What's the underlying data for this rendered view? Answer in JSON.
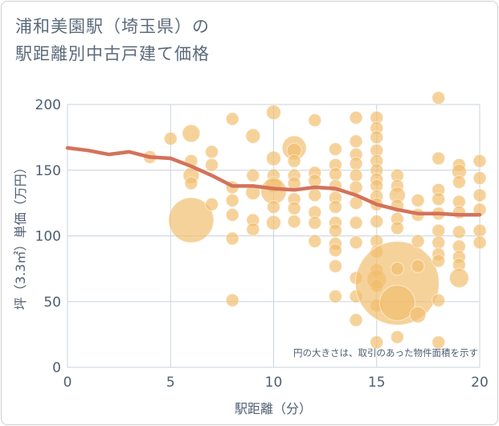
{
  "title_lines": [
    "浦和美園駅（埼玉県）の",
    "駅距離別中古戸建て価格"
  ],
  "note": "円の大きさは、取引のあった物件面積を示す",
  "colors": {
    "bubble": "#f2bc6b",
    "trend": "#d4725a",
    "grid": "#c9d3de",
    "text": "#4f5f72"
  },
  "chart_data": {
    "type": "scatter",
    "title": "浦和美園駅（埼玉県）の駅距離別中古戸建て価格",
    "xlabel": "駅距離（分）",
    "ylabel": "坪（3.3㎡）単価（万円）",
    "xlim": [
      0,
      20
    ],
    "ylim": [
      0,
      200
    ],
    "xticks": [
      "0",
      "5",
      "10",
      "15",
      "20"
    ],
    "yticks": [
      "0",
      "50",
      "100",
      "150",
      "200"
    ],
    "grid": true,
    "bubbles": [
      {
        "x": 4,
        "y": 160,
        "s": 8
      },
      {
        "x": 5,
        "y": 174,
        "s": 8
      },
      {
        "x": 6,
        "y": 178,
        "s": 11
      },
      {
        "x": 6,
        "y": 157,
        "s": 8
      },
      {
        "x": 6,
        "y": 146,
        "s": 10
      },
      {
        "x": 6,
        "y": 140,
        "s": 8
      },
      {
        "x": 6,
        "y": 112,
        "s": 28
      },
      {
        "x": 7,
        "y": 164,
        "s": 8
      },
      {
        "x": 7,
        "y": 154,
        "s": 8
      },
      {
        "x": 7,
        "y": 124,
        "s": 8
      },
      {
        "x": 8,
        "y": 189,
        "s": 8
      },
      {
        "x": 8,
        "y": 137,
        "s": 8
      },
      {
        "x": 8,
        "y": 127,
        "s": 8
      },
      {
        "x": 8,
        "y": 116,
        "s": 8
      },
      {
        "x": 8,
        "y": 98,
        "s": 8
      },
      {
        "x": 8,
        "y": 51,
        "s": 8
      },
      {
        "x": 9,
        "y": 176,
        "s": 9
      },
      {
        "x": 9,
        "y": 146,
        "s": 8
      },
      {
        "x": 9,
        "y": 133,
        "s": 9
      },
      {
        "x": 9,
        "y": 112,
        "s": 8
      },
      {
        "x": 9,
        "y": 105,
        "s": 8
      },
      {
        "x": 10,
        "y": 194,
        "s": 9
      },
      {
        "x": 10,
        "y": 159,
        "s": 9
      },
      {
        "x": 10,
        "y": 146,
        "s": 8
      },
      {
        "x": 10,
        "y": 139,
        "s": 10
      },
      {
        "x": 10,
        "y": 134,
        "s": 16
      },
      {
        "x": 10,
        "y": 122,
        "s": 8
      },
      {
        "x": 10,
        "y": 110,
        "s": 9
      },
      {
        "x": 11,
        "y": 167,
        "s": 15
      },
      {
        "x": 11,
        "y": 165,
        "s": 9
      },
      {
        "x": 11,
        "y": 157,
        "s": 8
      },
      {
        "x": 11,
        "y": 146,
        "s": 8
      },
      {
        "x": 11,
        "y": 140,
        "s": 8
      },
      {
        "x": 11,
        "y": 128,
        "s": 8
      },
      {
        "x": 11,
        "y": 121,
        "s": 8
      },
      {
        "x": 11,
        "y": 111,
        "s": 8
      },
      {
        "x": 12,
        "y": 188,
        "s": 8
      },
      {
        "x": 12,
        "y": 148,
        "s": 8
      },
      {
        "x": 12,
        "y": 142,
        "s": 8
      },
      {
        "x": 12,
        "y": 131,
        "s": 8
      },
      {
        "x": 12,
        "y": 118,
        "s": 8
      },
      {
        "x": 12,
        "y": 110,
        "s": 8
      },
      {
        "x": 12,
        "y": 96,
        "s": 8
      },
      {
        "x": 13,
        "y": 166,
        "s": 8
      },
      {
        "x": 13,
        "y": 154,
        "s": 8
      },
      {
        "x": 13,
        "y": 147,
        "s": 8
      },
      {
        "x": 13,
        "y": 138,
        "s": 8
      },
      {
        "x": 13,
        "y": 129,
        "s": 8
      },
      {
        "x": 13,
        "y": 122,
        "s": 8
      },
      {
        "x": 13,
        "y": 110,
        "s": 8
      },
      {
        "x": 13,
        "y": 104,
        "s": 8
      },
      {
        "x": 13,
        "y": 94,
        "s": 8
      },
      {
        "x": 13,
        "y": 89,
        "s": 8
      },
      {
        "x": 13,
        "y": 77,
        "s": 8
      },
      {
        "x": 13,
        "y": 54,
        "s": 8
      },
      {
        "x": 14,
        "y": 190,
        "s": 8
      },
      {
        "x": 14,
        "y": 172,
        "s": 8
      },
      {
        "x": 14,
        "y": 162,
        "s": 8
      },
      {
        "x": 14,
        "y": 155,
        "s": 8
      },
      {
        "x": 14,
        "y": 146,
        "s": 8
      },
      {
        "x": 14,
        "y": 137,
        "s": 8
      },
      {
        "x": 14,
        "y": 125,
        "s": 8
      },
      {
        "x": 14,
        "y": 110,
        "s": 8
      },
      {
        "x": 14,
        "y": 95,
        "s": 8
      },
      {
        "x": 14,
        "y": 68,
        "s": 8
      },
      {
        "x": 14,
        "y": 54,
        "s": 8
      },
      {
        "x": 14,
        "y": 36,
        "s": 8
      },
      {
        "x": 15,
        "y": 190,
        "s": 8
      },
      {
        "x": 15,
        "y": 182,
        "s": 8
      },
      {
        "x": 15,
        "y": 175,
        "s": 8
      },
      {
        "x": 15,
        "y": 165,
        "s": 8
      },
      {
        "x": 15,
        "y": 157,
        "s": 8
      },
      {
        "x": 15,
        "y": 150,
        "s": 8
      },
      {
        "x": 15,
        "y": 143,
        "s": 8
      },
      {
        "x": 15,
        "y": 138,
        "s": 8
      },
      {
        "x": 15,
        "y": 130,
        "s": 8
      },
      {
        "x": 15,
        "y": 124,
        "s": 8
      },
      {
        "x": 15,
        "y": 111,
        "s": 8
      },
      {
        "x": 15,
        "y": 96,
        "s": 8
      },
      {
        "x": 15,
        "y": 88,
        "s": 8
      },
      {
        "x": 15,
        "y": 74,
        "s": 8
      },
      {
        "x": 15,
        "y": 67,
        "s": 12
      },
      {
        "x": 15,
        "y": 62,
        "s": 8
      },
      {
        "x": 15,
        "y": 47,
        "s": 8
      },
      {
        "x": 15,
        "y": 19,
        "s": 8
      },
      {
        "x": 16,
        "y": 64,
        "s": 52
      },
      {
        "x": 16,
        "y": 146,
        "s": 8
      },
      {
        "x": 16,
        "y": 138,
        "s": 8
      },
      {
        "x": 16,
        "y": 131,
        "s": 10
      },
      {
        "x": 16,
        "y": 123,
        "s": 8
      },
      {
        "x": 16,
        "y": 113,
        "s": 8
      },
      {
        "x": 16,
        "y": 106,
        "s": 8
      },
      {
        "x": 16,
        "y": 75,
        "s": 8
      },
      {
        "x": 16,
        "y": 49,
        "s": 22
      },
      {
        "x": 16,
        "y": 23,
        "s": 8
      },
      {
        "x": 17,
        "y": 127,
        "s": 8
      },
      {
        "x": 17,
        "y": 116,
        "s": 8
      },
      {
        "x": 17,
        "y": 96,
        "s": 8
      },
      {
        "x": 17,
        "y": 77,
        "s": 8
      },
      {
        "x": 17,
        "y": 40,
        "s": 10
      },
      {
        "x": 18,
        "y": 205,
        "s": 8
      },
      {
        "x": 18,
        "y": 159,
        "s": 8
      },
      {
        "x": 18,
        "y": 135,
        "s": 8
      },
      {
        "x": 18,
        "y": 128,
        "s": 8
      },
      {
        "x": 18,
        "y": 117,
        "s": 8
      },
      {
        "x": 18,
        "y": 104,
        "s": 8
      },
      {
        "x": 18,
        "y": 95,
        "s": 8
      },
      {
        "x": 18,
        "y": 86,
        "s": 8
      },
      {
        "x": 18,
        "y": 81,
        "s": 8
      },
      {
        "x": 18,
        "y": 51,
        "s": 8
      },
      {
        "x": 18,
        "y": 19,
        "s": 8
      },
      {
        "x": 19,
        "y": 154,
        "s": 8
      },
      {
        "x": 19,
        "y": 149,
        "s": 9
      },
      {
        "x": 19,
        "y": 141,
        "s": 8
      },
      {
        "x": 19,
        "y": 126,
        "s": 8
      },
      {
        "x": 19,
        "y": 118,
        "s": 8
      },
      {
        "x": 19,
        "y": 103,
        "s": 8
      },
      {
        "x": 19,
        "y": 92,
        "s": 8
      },
      {
        "x": 19,
        "y": 84,
        "s": 8
      },
      {
        "x": 19,
        "y": 78,
        "s": 8
      },
      {
        "x": 19,
        "y": 68,
        "s": 12
      },
      {
        "x": 20,
        "y": 157,
        "s": 8
      },
      {
        "x": 20,
        "y": 144,
        "s": 8
      },
      {
        "x": 20,
        "y": 131,
        "s": 8
      },
      {
        "x": 20,
        "y": 120,
        "s": 8
      },
      {
        "x": 20,
        "y": 104,
        "s": 8
      },
      {
        "x": 20,
        "y": 95,
        "s": 8
      }
    ],
    "trend": [
      {
        "x": 0,
        "y": 167
      },
      {
        "x": 1,
        "y": 165
      },
      {
        "x": 2,
        "y": 162
      },
      {
        "x": 3,
        "y": 164
      },
      {
        "x": 4,
        "y": 160
      },
      {
        "x": 5,
        "y": 159
      },
      {
        "x": 6,
        "y": 153
      },
      {
        "x": 7,
        "y": 146
      },
      {
        "x": 8,
        "y": 138
      },
      {
        "x": 9,
        "y": 138
      },
      {
        "x": 10,
        "y": 136
      },
      {
        "x": 11,
        "y": 135
      },
      {
        "x": 12,
        "y": 137
      },
      {
        "x": 13,
        "y": 136
      },
      {
        "x": 14,
        "y": 131
      },
      {
        "x": 15,
        "y": 124
      },
      {
        "x": 16,
        "y": 120
      },
      {
        "x": 17,
        "y": 117
      },
      {
        "x": 18,
        "y": 117
      },
      {
        "x": 19,
        "y": 116
      },
      {
        "x": 20,
        "y": 116
      }
    ]
  }
}
